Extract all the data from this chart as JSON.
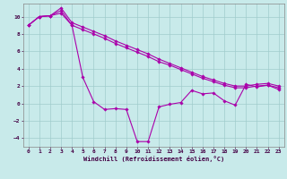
{
  "xlabel": "Windchill (Refroidissement éolien,°C)",
  "background_color": "#c8eaea",
  "grid_color": "#a0cccc",
  "line_color": "#aa00aa",
  "x": [
    0,
    1,
    2,
    3,
    4,
    5,
    6,
    7,
    8,
    9,
    10,
    11,
    12,
    13,
    14,
    15,
    16,
    17,
    18,
    19,
    20,
    21,
    22,
    23
  ],
  "line1": [
    9.0,
    10.0,
    10.1,
    10.4,
    9.0,
    3.0,
    0.2,
    -0.7,
    -0.6,
    -0.7,
    -4.4,
    -4.4,
    -0.4,
    -0.1,
    0.1,
    1.5,
    1.1,
    1.2,
    0.3,
    -0.2,
    2.2,
    1.9,
    2.1,
    1.6
  ],
  "line2": [
    9.0,
    10.0,
    10.1,
    11.0,
    9.3,
    8.8,
    8.3,
    7.8,
    7.2,
    6.7,
    6.2,
    5.7,
    5.1,
    4.6,
    4.1,
    3.6,
    3.1,
    2.7,
    2.3,
    2.0,
    2.0,
    2.2,
    2.3,
    2.0
  ],
  "line3": [
    9.0,
    10.0,
    10.1,
    10.7,
    9.0,
    8.5,
    8.0,
    7.5,
    6.9,
    6.4,
    5.9,
    5.4,
    4.8,
    4.4,
    3.9,
    3.4,
    2.9,
    2.5,
    2.1,
    1.8,
    1.8,
    2.0,
    2.1,
    1.8
  ],
  "ylim": [
    -5,
    11.5
  ],
  "xlim": [
    -0.5,
    23.5
  ],
  "yticks": [
    -4,
    -2,
    0,
    2,
    4,
    6,
    8,
    10
  ],
  "xticks": [
    0,
    1,
    2,
    3,
    4,
    5,
    6,
    7,
    8,
    9,
    10,
    11,
    12,
    13,
    14,
    15,
    16,
    17,
    18,
    19,
    20,
    21,
    22,
    23
  ]
}
